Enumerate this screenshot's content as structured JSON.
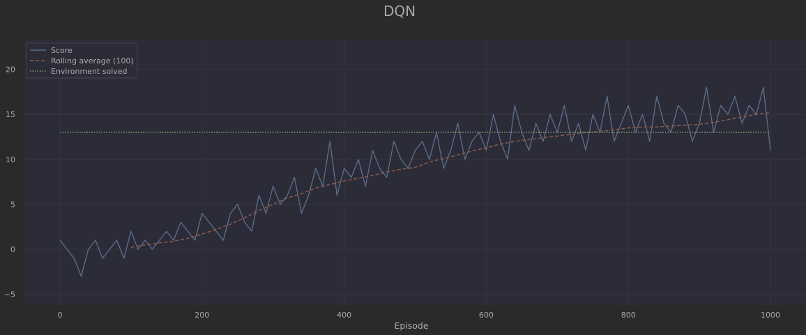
{
  "chart_data": {
    "type": "line",
    "title": "DQN",
    "xlabel": "Episode",
    "ylabel": "",
    "xlim": [
      -50,
      1050
    ],
    "ylim": [
      -6.2,
      23.3
    ],
    "xticks": [
      0,
      200,
      400,
      600,
      800,
      1000
    ],
    "yticks": [
      -5,
      0,
      5,
      10,
      15,
      20
    ],
    "grid": true,
    "legend_position": "top-left",
    "colors": {
      "background": "#2a2a2a",
      "plot_background": "#2c2c38",
      "grid": "#363640",
      "text": "#a9a9a9",
      "score": "#5d6f8e",
      "rolling": "#8c5b4f",
      "solved": "#7f9f7a"
    },
    "series": [
      {
        "name": "Score",
        "style": "solid",
        "x": [
          0,
          10,
          20,
          30,
          40,
          50,
          60,
          70,
          80,
          90,
          100,
          110,
          120,
          130,
          140,
          150,
          160,
          170,
          180,
          190,
          200,
          210,
          220,
          230,
          240,
          250,
          260,
          270,
          280,
          290,
          300,
          310,
          320,
          330,
          340,
          350,
          360,
          370,
          380,
          390,
          400,
          410,
          420,
          430,
          440,
          450,
          460,
          470,
          480,
          490,
          500,
          510,
          520,
          530,
          540,
          550,
          560,
          570,
          580,
          590,
          600,
          610,
          620,
          630,
          640,
          650,
          660,
          670,
          680,
          690,
          700,
          710,
          720,
          730,
          740,
          750,
          760,
          770,
          780,
          790,
          800,
          810,
          820,
          830,
          840,
          850,
          860,
          870,
          880,
          890,
          900,
          910,
          920,
          930,
          940,
          950,
          960,
          970,
          980,
          990,
          1000
        ],
        "values": [
          1,
          0,
          -1,
          -3,
          0,
          1,
          -1,
          0,
          1,
          -1,
          2,
          0,
          1,
          0,
          1,
          2,
          1,
          3,
          2,
          1,
          4,
          3,
          2,
          1,
          4,
          5,
          3,
          2,
          6,
          4,
          7,
          5,
          6,
          8,
          4,
          6,
          9,
          7,
          12,
          6,
          9,
          8,
          10,
          7,
          11,
          9,
          8,
          12,
          10,
          9,
          11,
          12,
          10,
          13,
          9,
          11,
          14,
          10,
          12,
          13,
          11,
          15,
          12,
          10,
          16,
          13,
          11,
          14,
          12,
          15,
          13,
          16,
          12,
          14,
          11,
          15,
          13,
          17,
          12,
          14,
          16,
          13,
          15,
          12,
          17,
          14,
          13,
          16,
          15,
          12,
          14,
          18,
          13,
          16,
          15,
          17,
          14,
          16,
          15,
          18,
          11
        ]
      },
      {
        "name": "Rolling average (100)",
        "style": "dashed",
        "x": [
          100,
          120,
          140,
          160,
          180,
          200,
          220,
          240,
          260,
          280,
          300,
          320,
          340,
          360,
          380,
          400,
          420,
          440,
          460,
          480,
          500,
          520,
          540,
          560,
          580,
          600,
          620,
          640,
          660,
          680,
          700,
          720,
          740,
          760,
          780,
          800,
          820,
          840,
          860,
          880,
          900,
          920,
          940,
          960,
          980,
          1000
        ],
        "values": [
          0.2,
          0.5,
          0.7,
          0.9,
          1.2,
          1.7,
          2.2,
          2.8,
          3.5,
          4.3,
          5.0,
          5.7,
          6.2,
          6.8,
          7.2,
          7.6,
          7.9,
          8.2,
          8.6,
          8.9,
          9.1,
          9.7,
          10.1,
          10.5,
          10.9,
          11.3,
          11.7,
          12.0,
          12.2,
          12.4,
          12.6,
          12.8,
          13.0,
          13.1,
          13.3,
          13.5,
          13.6,
          13.6,
          13.7,
          13.8,
          13.9,
          14.1,
          14.4,
          14.7,
          15.0,
          15.2
        ]
      },
      {
        "name": "Environment solved",
        "style": "dotted",
        "x": [
          0,
          1000
        ],
        "values": [
          13,
          13
        ]
      }
    ]
  }
}
